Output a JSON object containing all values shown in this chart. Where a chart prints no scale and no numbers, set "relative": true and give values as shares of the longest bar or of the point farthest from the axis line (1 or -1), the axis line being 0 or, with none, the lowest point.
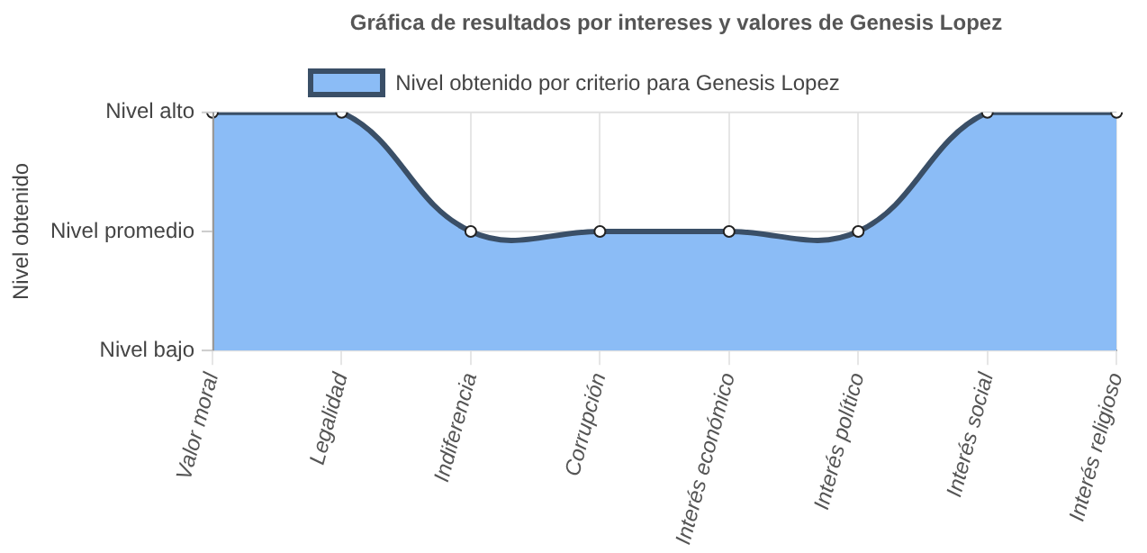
{
  "chart_data": {
    "type": "area",
    "title": "Gráfica de resultados por intereses y valores de Genesis Lopez",
    "annotations": [
      "Nivel obtenido"
    ],
    "categories": [
      "Valor moral",
      "Legalidad",
      "Indiferencia",
      "Corrupción",
      "Interés económico",
      "Interés político",
      "Interés social",
      "Interés religioso"
    ],
    "series": [
      {
        "name": "Nivel obtenido por criterio para Genesis Lopez",
        "color": "#8bbcf6",
        "values": [
          1,
          1,
          0.5,
          0.5,
          0.5,
          0.5,
          1,
          1
        ]
      }
    ],
    "relative": true,
    "ref_lines": [
      {
        "axis": "y",
        "value": 0,
        "label": "Nivel bajo",
        "color": "#e0e0e0"
      },
      {
        "axis": "y",
        "value": 0.5,
        "label": "Nivel promedio",
        "color": "#e0e0e0"
      },
      {
        "axis": "y",
        "value": 1,
        "label": "Nivel alto",
        "color": "#e0e0e0"
      }
    ],
    "grid": "x",
    "legend": "top",
    "marker": "circle",
    "line_style": "solid"
  }
}
